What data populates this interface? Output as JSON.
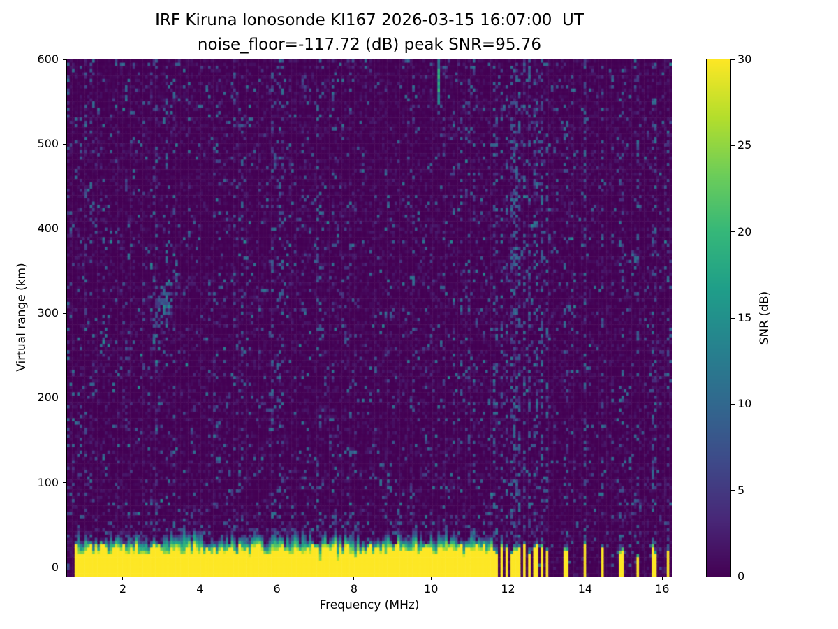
{
  "chart_data": {
    "type": "heatmap",
    "title": "IRF Kiruna Ionosonde KI167 2026-03-15 16:07:00  UT",
    "subtitle": "noise_floor=-117.72 (dB) peak SNR=95.76",
    "noise_floor_db": -117.72,
    "peak_snr_db": 95.76,
    "xlabel": "Frequency (MHz)",
    "ylabel": "Virtual range (km)",
    "colorbar_label": "SNR (dB)",
    "colormap": "viridis",
    "xlim": [
      0.55,
      16.25
    ],
    "ylim": [
      -11,
      600
    ],
    "xticks": [
      2,
      4,
      6,
      8,
      10,
      12,
      14,
      16
    ],
    "yticks": [
      0,
      100,
      200,
      300,
      400,
      500,
      600
    ],
    "colorbar_ticks": [
      0,
      5,
      10,
      15,
      20,
      25,
      30
    ],
    "clim": [
      0,
      30
    ],
    "ground_clutter_band": {
      "freq_start_mhz": 0.75,
      "continuous_until_mhz": 11.62,
      "saturated_top_km_range": [
        14,
        27
      ],
      "band_top_km_range": [
        26,
        48
      ],
      "stripe_freqs_mhz": [
        11.67,
        11.82,
        11.97,
        12.12,
        12.27,
        12.42,
        12.57,
        12.72,
        12.87,
        13.02,
        13.5,
        13.98,
        14.45,
        14.95,
        15.35,
        15.78,
        16.14
      ],
      "stripe_halfwidth_mhz": 0.045
    },
    "echo_cluster": {
      "freq_mhz": 3.05,
      "freq_spread_mhz": 0.3,
      "range_km": 305,
      "range_spread_km": 26,
      "slope_km_per_mhz": 110
    },
    "interference_streak": {
      "freq_mhz": 10.22,
      "range_min_km": 545,
      "range_max_km": 600
    },
    "noise": {
      "speckle_density": 0.055,
      "speckle_snr_db": [
        3,
        11
      ],
      "seed": 7
    }
  }
}
